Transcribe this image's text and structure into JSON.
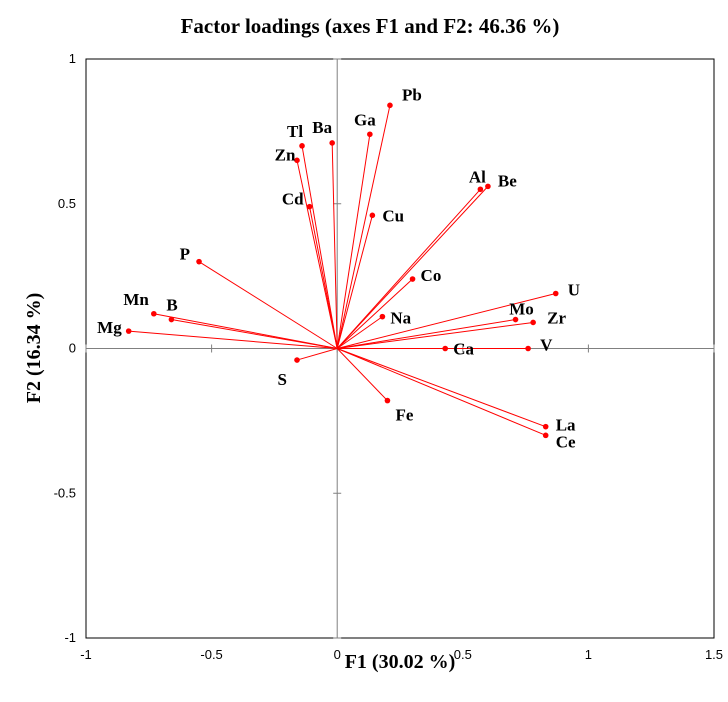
{
  "chart_data": {
    "type": "scatter",
    "title": "Factor loadings (axes F1 and F2: 46.36 %)",
    "xlabel": "F1 (30.02 %)",
    "ylabel": "F2 (16.34 %)",
    "xlim": [
      -1,
      1.5
    ],
    "ylim": [
      -1,
      1
    ],
    "xticks": [
      "-1",
      "-0.5",
      "0",
      "0.5",
      "1",
      "1.5"
    ],
    "yticks": [
      "-1",
      "-0.5",
      "0",
      "0.5",
      "1"
    ],
    "grid": false,
    "legend": "none",
    "line_color": "#ff0000",
    "point_color": "#ff0000",
    "points": [
      {
        "label": "Pb",
        "x": 0.21,
        "y": 0.84
      },
      {
        "label": "Ga",
        "x": 0.13,
        "y": 0.74
      },
      {
        "label": "Ba",
        "x": -0.02,
        "y": 0.71
      },
      {
        "label": "Tl",
        "x": -0.14,
        "y": 0.7
      },
      {
        "label": "Zn",
        "x": -0.16,
        "y": 0.65
      },
      {
        "label": "Cd",
        "x": -0.11,
        "y": 0.49
      },
      {
        "label": "Cu",
        "x": 0.14,
        "y": 0.46
      },
      {
        "label": "Al",
        "x": 0.57,
        "y": 0.55
      },
      {
        "label": "Be",
        "x": 0.6,
        "y": 0.56
      },
      {
        "label": "P",
        "x": -0.55,
        "y": 0.3
      },
      {
        "label": "Co",
        "x": 0.3,
        "y": 0.24
      },
      {
        "label": "U",
        "x": 0.87,
        "y": 0.19
      },
      {
        "label": "Mo",
        "x": 0.71,
        "y": 0.1
      },
      {
        "label": "Zr",
        "x": 0.78,
        "y": 0.09
      },
      {
        "label": "Na",
        "x": 0.18,
        "y": 0.11
      },
      {
        "label": "Mn",
        "x": -0.73,
        "y": 0.12
      },
      {
        "label": "B",
        "x": -0.66,
        "y": 0.1
      },
      {
        "label": "Mg",
        "x": -0.83,
        "y": 0.06
      },
      {
        "label": "Ca",
        "x": 0.43,
        "y": 0.0
      },
      {
        "label": "V",
        "x": 0.76,
        "y": 0.0
      },
      {
        "label": "S",
        "x": -0.16,
        "y": -0.04
      },
      {
        "label": "Fe",
        "x": 0.2,
        "y": -0.18
      },
      {
        "label": "La",
        "x": 0.83,
        "y": -0.27
      },
      {
        "label": "Ce",
        "x": 0.83,
        "y": -0.3
      }
    ]
  }
}
